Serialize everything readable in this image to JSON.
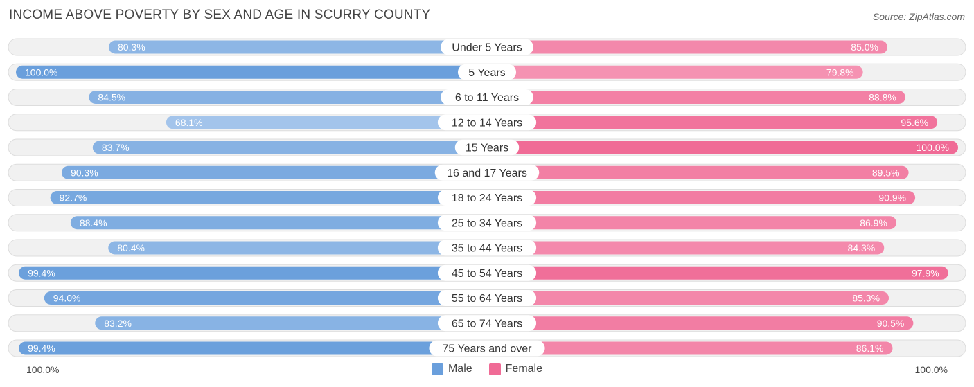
{
  "title": "INCOME ABOVE POVERTY BY SEX AND AGE IN SCURRY COUNTY",
  "source": "Source: ZipAtlas.com",
  "axis": {
    "left_label": "100.0%",
    "right_label": "100.0%"
  },
  "legend": {
    "male_label": "Male",
    "female_label": "Female"
  },
  "colors": {
    "male_dark": "#6a9fdc",
    "male_light": "#a9c8ec",
    "female_dark": "#f06b96",
    "female_light": "#f8aec6",
    "track": "#f1f1f1",
    "track_border": "#dddddd"
  },
  "chart_data": {
    "type": "bar",
    "orientation": "diverging-horizontal",
    "title": "INCOME ABOVE POVERTY BY SEX AND AGE IN SCURRY COUNTY",
    "xlim": [
      0,
      100
    ],
    "categories": [
      "Under 5 Years",
      "5 Years",
      "6 to 11 Years",
      "12 to 14 Years",
      "15 Years",
      "16 and 17 Years",
      "18 to 24 Years",
      "25 to 34 Years",
      "35 to 44 Years",
      "45 to 54 Years",
      "55 to 64 Years",
      "65 to 74 Years",
      "75 Years and over"
    ],
    "series": [
      {
        "name": "Male",
        "values": [
          80.3,
          100.0,
          84.5,
          68.1,
          83.7,
          90.3,
          92.7,
          88.4,
          80.4,
          99.4,
          94.0,
          83.2,
          99.4
        ],
        "labels": [
          "80.3%",
          "100.0%",
          "84.5%",
          "68.1%",
          "83.7%",
          "90.3%",
          "92.7%",
          "88.4%",
          "80.4%",
          "99.4%",
          "94.0%",
          "83.2%",
          "99.4%"
        ]
      },
      {
        "name": "Female",
        "values": [
          85.0,
          79.8,
          88.8,
          95.6,
          100.0,
          89.5,
          90.9,
          86.9,
          84.3,
          97.9,
          85.3,
          90.5,
          86.1
        ],
        "labels": [
          "85.0%",
          "79.8%",
          "88.8%",
          "95.6%",
          "100.0%",
          "89.5%",
          "90.9%",
          "86.9%",
          "84.3%",
          "97.9%",
          "85.3%",
          "90.5%",
          "86.1%"
        ]
      }
    ]
  }
}
